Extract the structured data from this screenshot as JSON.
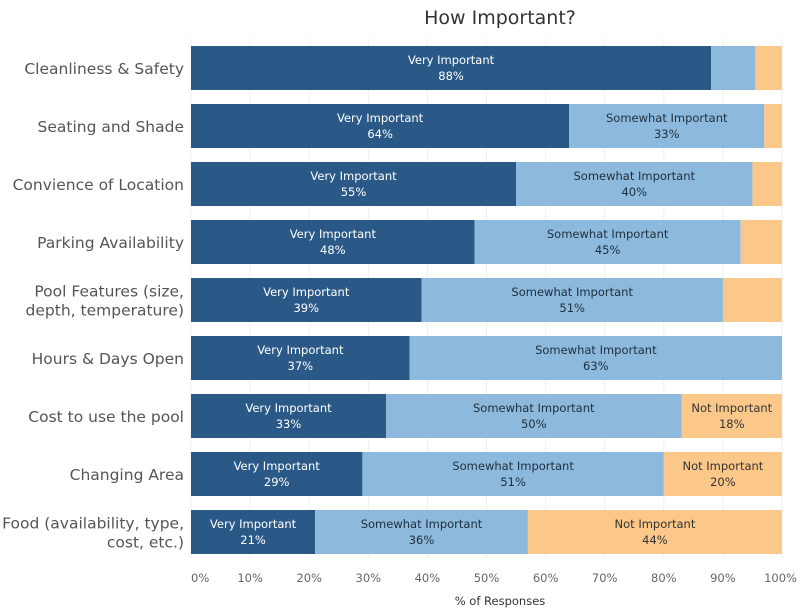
{
  "chart_data": {
    "type": "bar",
    "orientation": "horizontal",
    "stacked": true,
    "title": "How Important?",
    "xlabel": "% of Responses",
    "ylabel": "",
    "xlim": [
      0,
      100
    ],
    "xticks": [
      "0%",
      "10%",
      "20%",
      "30%",
      "40%",
      "50%",
      "60%",
      "70%",
      "80%",
      "90%",
      "100%"
    ],
    "categories": [
      [
        "Cleanliness & Safety"
      ],
      [
        "Seating and Shade"
      ],
      [
        "Convience of Location"
      ],
      [
        "Parking Availability"
      ],
      [
        "Pool Features (size,",
        "depth, temperature)"
      ],
      [
        "Hours & Days Open"
      ],
      [
        "Cost to use the pool"
      ],
      [
        "Changing Area"
      ],
      [
        "Food (availability, type,",
        "cost, etc.)"
      ]
    ],
    "series": [
      {
        "name": "Very Important",
        "color": "#2b5987",
        "text_color": "#ffffff",
        "values": [
          88,
          64,
          55,
          48,
          39,
          37,
          33,
          29,
          21
        ],
        "labels": [
          "88%",
          "64%",
          "55%",
          "48%",
          "39%",
          "37%",
          "33%",
          "29%",
          "21%"
        ],
        "show_label": [
          true,
          true,
          true,
          true,
          true,
          true,
          true,
          true,
          true
        ]
      },
      {
        "name": "Somewhat Important",
        "color": "#8cb9dc",
        "text_color": "#1f2f3f",
        "values": [
          7.5,
          33,
          40,
          45,
          51,
          63,
          50,
          51,
          36
        ],
        "labels": [
          "",
          "33%",
          "40%",
          "45%",
          "51%",
          "63%",
          "50%",
          "51%",
          "36%"
        ],
        "show_label": [
          false,
          true,
          true,
          true,
          true,
          true,
          true,
          true,
          true
        ]
      },
      {
        "name": "Not Important",
        "color": "#fcc88a",
        "text_color": "#333333",
        "values": [
          4.5,
          3,
          5,
          7.5,
          10,
          0,
          18,
          20,
          44
        ],
        "labels": [
          "",
          "",
          "",
          "",
          "",
          "",
          "18%",
          "20%",
          "44%"
        ],
        "show_label": [
          false,
          false,
          false,
          false,
          false,
          false,
          true,
          true,
          true
        ]
      }
    ]
  }
}
